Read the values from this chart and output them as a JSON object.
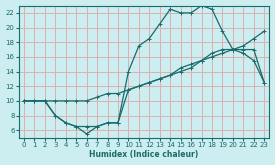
{
  "xlabel": "Humidex (Indice chaleur)",
  "bg_color": "#cceef0",
  "grid_color": "#ddb0b0",
  "line_color": "#1a6b6b",
  "xlim": [
    -0.5,
    23.5
  ],
  "ylim": [
    5.0,
    23.0
  ],
  "xticks": [
    0,
    1,
    2,
    3,
    4,
    5,
    6,
    7,
    8,
    9,
    10,
    11,
    12,
    13,
    14,
    15,
    16,
    17,
    18,
    19,
    20,
    21,
    22,
    23
  ],
  "yticks": [
    6,
    8,
    10,
    12,
    14,
    16,
    18,
    20,
    22
  ],
  "line1_x": [
    0,
    1,
    2,
    3,
    4,
    5,
    6,
    7,
    8,
    9,
    10,
    11,
    12,
    13,
    14,
    15,
    16,
    17,
    18,
    19,
    20,
    21,
    22,
    23
  ],
  "line1_y": [
    10,
    10,
    10,
    8,
    7,
    6.5,
    5.5,
    6.5,
    7,
    7,
    14,
    17.5,
    18.5,
    20.5,
    22.5,
    22,
    22,
    23,
    22.5,
    19.5,
    17,
    16.5,
    15.5,
    12.5
  ],
  "line2_x": [
    0,
    1,
    2,
    3,
    4,
    5,
    6,
    7,
    8,
    9,
    10,
    11,
    12,
    13,
    14,
    15,
    16,
    17,
    18,
    19,
    20,
    21,
    22,
    23
  ],
  "line2_y": [
    10,
    10,
    10,
    10,
    10,
    10,
    10,
    10.5,
    11,
    11,
    11.5,
    12,
    12.5,
    13,
    13.5,
    14,
    14.5,
    15.5,
    16.5,
    17,
    17,
    17.5,
    18.5,
    19.5
  ],
  "line3_x": [
    0,
    1,
    2,
    3,
    4,
    5,
    6,
    7,
    8,
    9,
    10,
    11,
    12,
    13,
    14,
    15,
    16,
    17,
    18,
    19,
    20,
    21,
    22,
    23
  ],
  "line3_y": [
    10,
    10,
    10,
    8,
    7,
    6.5,
    6.5,
    6.5,
    7,
    7,
    11.5,
    12,
    12.5,
    13,
    13.5,
    14.5,
    15,
    15.5,
    16,
    16.5,
    17,
    17,
    17,
    12.5
  ]
}
